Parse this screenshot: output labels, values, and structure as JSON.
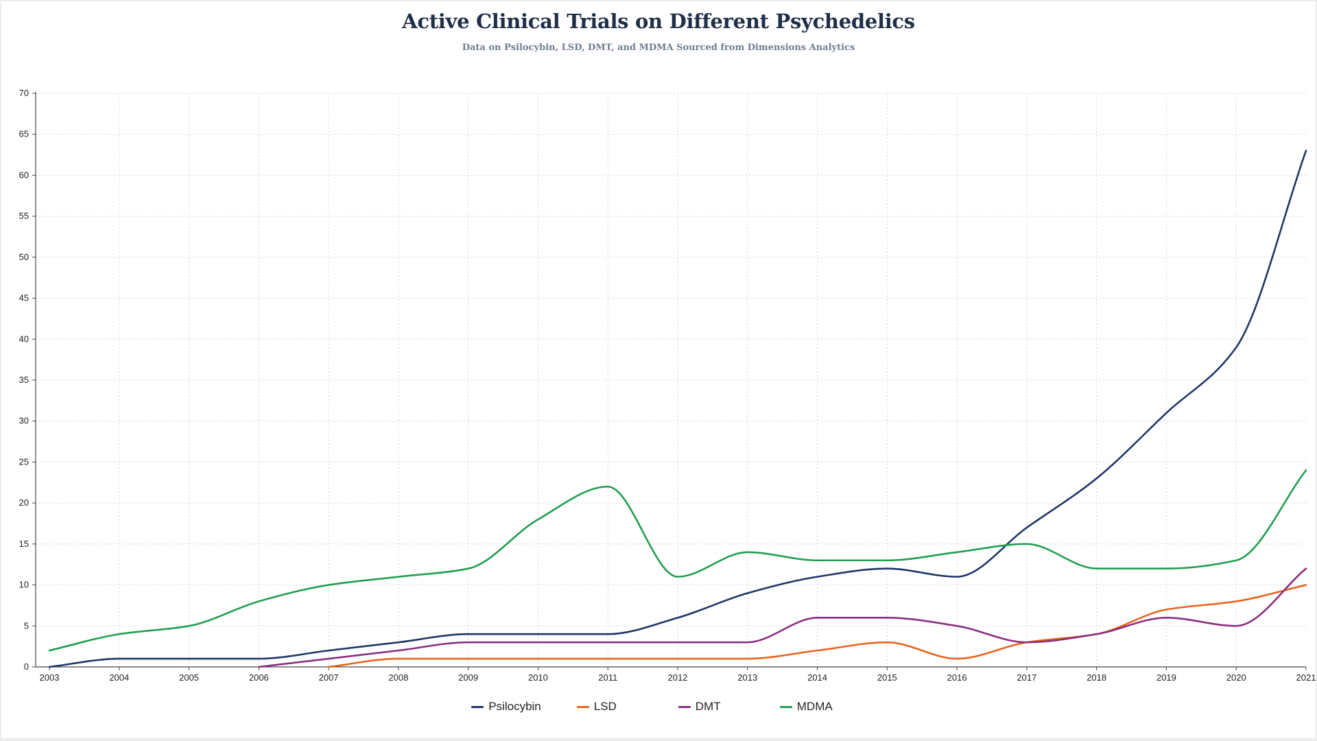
{
  "page": {
    "title": "Active Clinical Trials on Different Psychedelics",
    "subtitle": "Data on Psilocybin, LSD, DMT, and MDMA Sourced from Dimensions Analytics"
  },
  "colors": {
    "title": "#1f2f48",
    "subtitle": "#6f7c93",
    "grid": "#d6d6d6",
    "axis": "#444444"
  },
  "legend": {
    "position": "bottom-center"
  },
  "chart_data": {
    "type": "line",
    "title": "Active Clinical Trials on Different Psychedelics",
    "subtitle": "Data on Psilocybin, LSD, DMT, and MDMA Sourced from Dimensions Analytics",
    "xlabel": "",
    "ylabel": "",
    "x": [
      "2003",
      "2004",
      "2005",
      "2006",
      "2007",
      "2008",
      "2009",
      "2010",
      "2011",
      "2012",
      "2013",
      "2014",
      "2015",
      "2016",
      "2017",
      "2018",
      "2019",
      "2020",
      "2021"
    ],
    "ylim": [
      0,
      70
    ],
    "yticks": [
      0,
      5,
      10,
      15,
      20,
      25,
      30,
      35,
      40,
      45,
      50,
      55,
      60,
      65,
      70
    ],
    "grid": true,
    "smooth": true,
    "series": [
      {
        "name": "Psilocybin",
        "color": "#1f3566",
        "values": [
          0,
          1,
          1,
          1,
          2,
          3,
          4,
          4,
          4,
          6,
          9,
          11,
          12,
          11,
          17,
          23,
          31,
          39,
          63
        ]
      },
      {
        "name": "LSD",
        "color": "#e8631c",
        "values": [
          null,
          null,
          null,
          null,
          0,
          1,
          1,
          1,
          1,
          1,
          1,
          2,
          3,
          1,
          3,
          4,
          7,
          8,
          10
        ]
      },
      {
        "name": "DMT",
        "color": "#8a2e7f",
        "values": [
          null,
          null,
          null,
          0,
          1,
          2,
          3,
          3,
          3,
          3,
          3,
          6,
          6,
          5,
          3,
          4,
          6,
          5,
          12
        ]
      },
      {
        "name": "MDMA",
        "color": "#1f9e4f",
        "values": [
          2,
          4,
          5,
          8,
          10,
          11,
          12,
          18,
          22,
          11,
          14,
          13,
          13,
          14,
          15,
          12,
          12,
          13,
          24
        ]
      }
    ]
  }
}
